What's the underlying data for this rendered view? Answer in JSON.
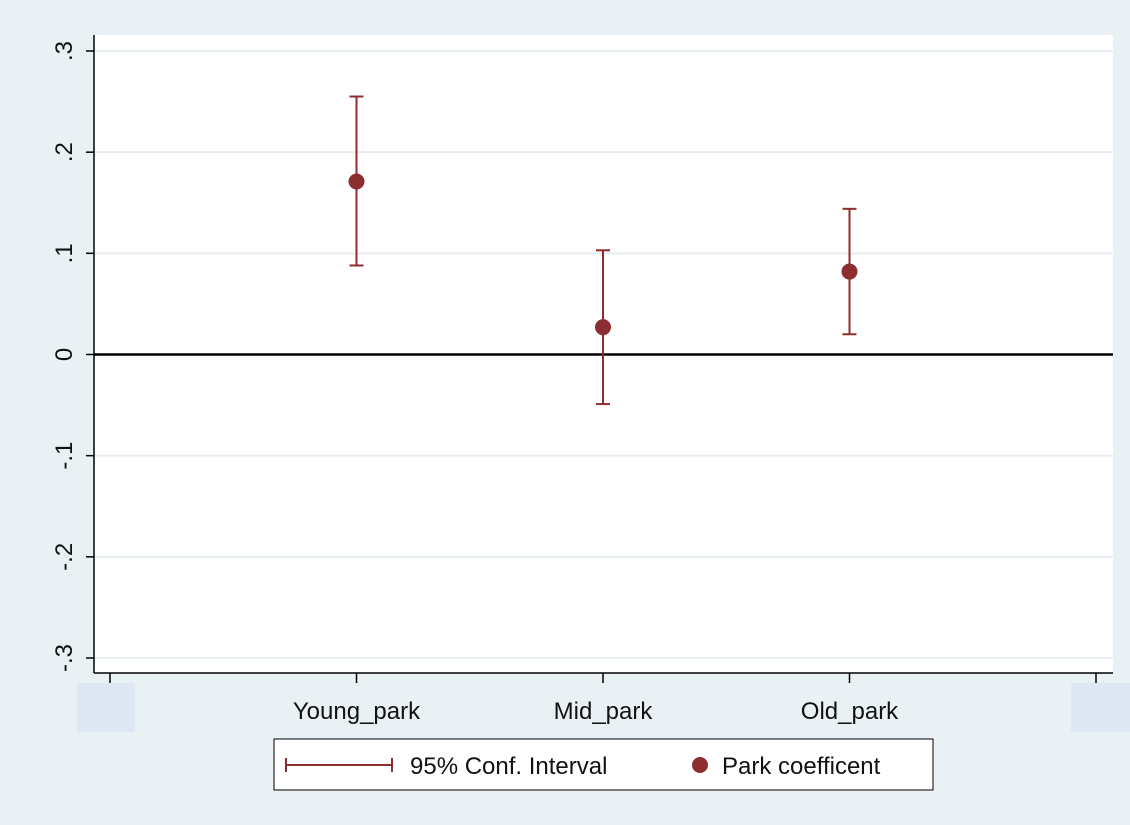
{
  "chart_data": {
    "type": "scatter",
    "subtype": "coefficient-plot-with-error-bars",
    "categories": [
      "Young_park",
      "Mid_park",
      "Old_park"
    ],
    "series": [
      {
        "name": "Park coefficent",
        "values": [
          0.171,
          0.027,
          0.082
        ],
        "ci_lower": [
          0.088,
          -0.049,
          0.02
        ],
        "ci_upper": [
          0.255,
          0.103,
          0.144
        ]
      }
    ],
    "ci_label": "95% Conf. Interval",
    "yticks": [
      ".3",
      ".2",
      ".1",
      "0",
      "-.1",
      "-.2",
      "-.3"
    ],
    "ylim": [
      -0.3,
      0.3
    ],
    "xlim": [
      0,
      4
    ],
    "reference_line_y": 0,
    "grid": "horizontal",
    "legend_position": "bottom",
    "colors": {
      "marker": "#8c2d2f",
      "errorbar": "#8c2d2f",
      "background": "#eaf1f5",
      "plot_background": "#ffffff",
      "gridline": "#e6eef2",
      "refline": "#000000"
    }
  }
}
